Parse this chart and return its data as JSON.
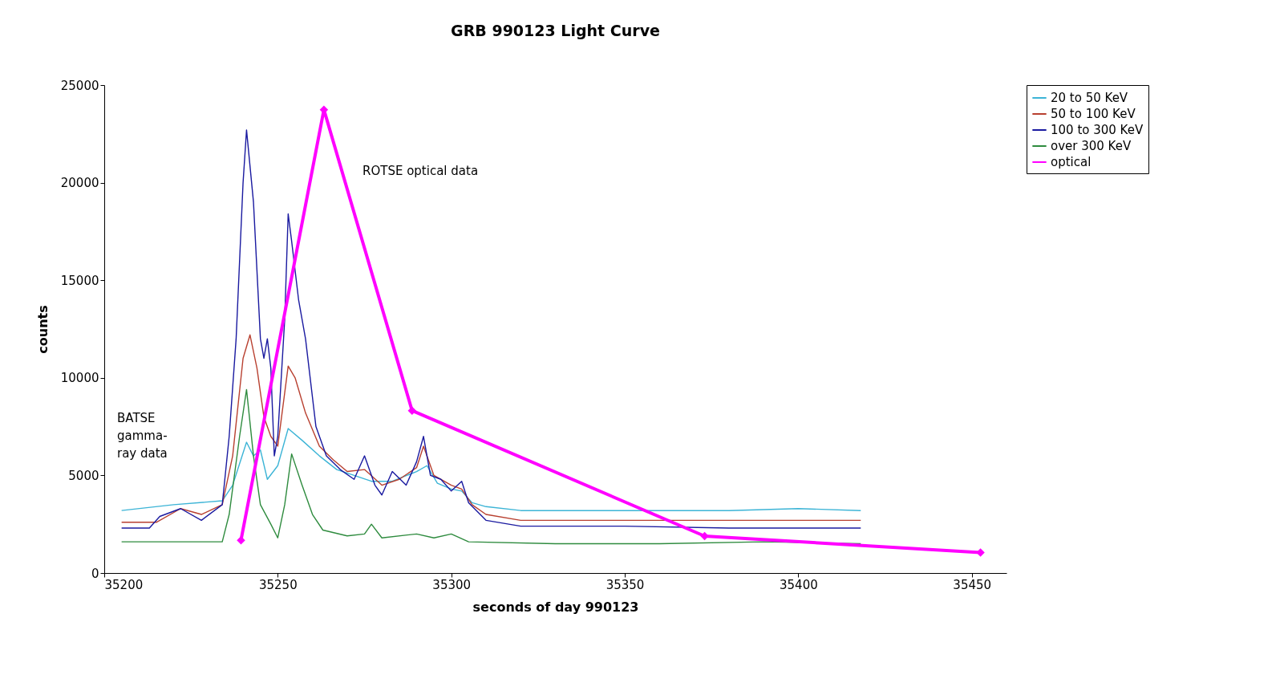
{
  "chart_data": {
    "type": "line",
    "title": "GRB 990123 Light Curve",
    "xlabel": "seconds of day 990123",
    "ylabel": "counts",
    "xlim": [
      35200,
      35460
    ],
    "xticks": [
      35200,
      35250,
      35300,
      35350,
      35400,
      35450
    ],
    "ylim": [
      0,
      25000
    ],
    "yticks": [
      0,
      5000,
      10000,
      15000,
      20000,
      25000
    ],
    "grid": false,
    "legend": "right",
    "line_style": "solid",
    "annotations": [
      "ROTSE optical data",
      "BATSE\ngamma-\nray data"
    ],
    "series": [
      {
        "name": "20 to 50 KeV",
        "color": "#3cb4d6",
        "marker": "none",
        "x": [
          35205,
          35220,
          35234,
          35237,
          35241,
          35243,
          35245,
          35247,
          35250,
          35253,
          35257,
          35262,
          35267,
          35272,
          35277,
          35283,
          35290,
          35293,
          35296,
          35300,
          35303,
          35306,
          35310,
          35320,
          35340,
          35360,
          35380,
          35400,
          35418
        ],
        "values": [
          3200,
          3500,
          3700,
          4500,
          6700,
          6000,
          6300,
          4800,
          5500,
          7400,
          6800,
          6000,
          5300,
          5000,
          4700,
          4700,
          5200,
          5500,
          4600,
          4300,
          4200,
          3600,
          3400,
          3200,
          3200,
          3200,
          3200,
          3300,
          3200
        ]
      },
      {
        "name": "50 to 100 KeV",
        "color": "#b84030",
        "marker": "none",
        "x": [
          35205,
          35215,
          35222,
          35228,
          35234,
          35237,
          35240,
          35242,
          35244,
          35246,
          35248,
          35250,
          35253,
          35255,
          35258,
          35262,
          35266,
          35270,
          35275,
          35280,
          35285,
          35290,
          35292,
          35295,
          35300,
          35303,
          35306,
          35310,
          35320,
          35350,
          35380,
          35418
        ],
        "values": [
          2600,
          2600,
          3300,
          3000,
          3500,
          6000,
          11000,
          12200,
          10500,
          8000,
          7000,
          6500,
          10600,
          10000,
          8200,
          6500,
          5800,
          5200,
          5300,
          4500,
          4800,
          5400,
          6500,
          5000,
          4500,
          4300,
          3500,
          3000,
          2700,
          2700,
          2700,
          2700
        ]
      },
      {
        "name": "100 to 300 KeV",
        "color": "#1a1aa0",
        "marker": "none",
        "x": [
          35205,
          35213,
          35216,
          35222,
          35228,
          35234,
          35236,
          35238,
          35240,
          35241,
          35243,
          35245,
          35246,
          35247,
          35248,
          35249,
          35250,
          35252,
          35253,
          35254,
          35256,
          35258,
          35261,
          35264,
          35268,
          35272,
          35275,
          35278,
          35280,
          35283,
          35287,
          35290,
          35292,
          35294,
          35297,
          35300,
          35303,
          35305,
          35310,
          35320,
          35350,
          35380,
          35418
        ],
        "values": [
          2300,
          2300,
          2900,
          3300,
          2700,
          3500,
          7000,
          12000,
          20000,
          22700,
          19000,
          12000,
          11000,
          12000,
          10500,
          6000,
          7000,
          13000,
          18400,
          17000,
          14000,
          12000,
          7500,
          6000,
          5300,
          4800,
          6000,
          4500,
          4000,
          5200,
          4500,
          5700,
          7000,
          5000,
          4800,
          4200,
          4700,
          3600,
          2700,
          2400,
          2400,
          2300,
          2300
        ]
      },
      {
        "name": "over 300 KeV",
        "color": "#2e8b3e",
        "marker": "none",
        "x": [
          35205,
          35234,
          35236,
          35239,
          35241,
          35243,
          35245,
          35248,
          35250,
          35252,
          35254,
          35257,
          35260,
          35263,
          35270,
          35275,
          35277,
          35280,
          35290,
          35295,
          35300,
          35305,
          35330,
          35360,
          35390,
          35418
        ],
        "values": [
          1600,
          1600,
          3000,
          7000,
          9400,
          6000,
          3500,
          2500,
          1800,
          3500,
          6100,
          4500,
          3000,
          2200,
          1900,
          2000,
          2500,
          1800,
          2000,
          1800,
          2000,
          1600,
          1500,
          1500,
          1600,
          1500
        ]
      },
      {
        "name": "optical",
        "color": "#ff00ff",
        "marker": "diamond",
        "x": [
          35239.4,
          35263.3,
          35288.7,
          35373,
          35452.5
        ],
        "values": [
          1680,
          23740,
          8320,
          1890,
          1050
        ]
      }
    ]
  }
}
